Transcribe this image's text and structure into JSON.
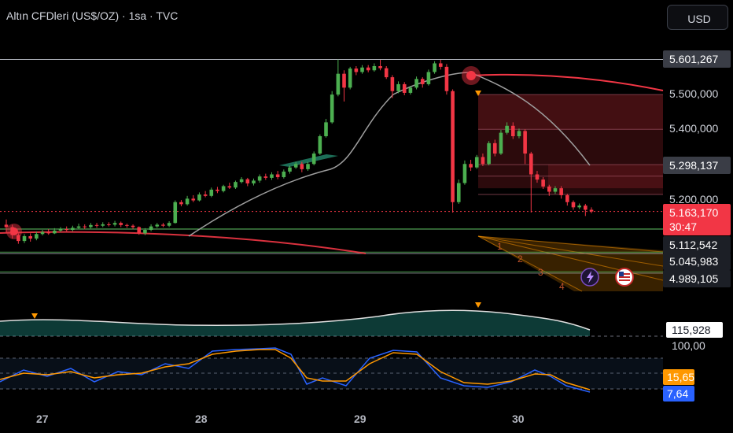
{
  "header": {
    "title": "Altın CFDleri (US$/OZ) · 1sa · TVC",
    "currency_button": "USD"
  },
  "colors": {
    "background": "#000000",
    "bull": "#26a69a",
    "bull_bright": "#4caf50",
    "bear": "#f23645",
    "ma_line": "#9e9e9e",
    "ma_red": "#f23645",
    "stoch_k": "#2962ff",
    "stoch_d": "#ff9800",
    "zone": "#f23645",
    "fan": "#ff9800",
    "osc_fill": "#26a69a"
  },
  "price_scale": {
    "levels": [
      "5.500,000",
      "5.400,000",
      "5.200,000"
    ],
    "tags": [
      {
        "text": "5.601,267",
        "style": "gray"
      },
      {
        "text": "5.298,137",
        "style": "gray"
      },
      {
        "text": "5.112,542",
        "style": "dark"
      },
      {
        "text": "5.045,983",
        "style": "dark"
      },
      {
        "text": "4.989,105",
        "style": "dark"
      }
    ],
    "current_price": "5.163,170",
    "countdown": "30:47"
  },
  "oscillator": {
    "value": "115,928",
    "level": "100,00"
  },
  "stochastic": {
    "d_value": "15,65",
    "k_value": "7,64"
  },
  "fan_labels": [
    "1",
    "2",
    "3",
    "4"
  ],
  "x_axis": [
    "27",
    "28",
    "29",
    "30"
  ],
  "icons": [
    "lightning-icon",
    "us-flag-icon"
  ],
  "chart_data": {
    "type": "candlestick",
    "title": "Altın CFDleri (US$/OZ) · 1sa · TVC",
    "x_ticks": [
      "27",
      "28",
      "29",
      "30"
    ],
    "ylim": [
      4960,
      5640
    ],
    "lines": [
      5601.267,
      5298.137,
      5112.542,
      5045.983,
      4989.105
    ],
    "last": 5163.17,
    "candles": [
      [
        5125,
        5118,
        5140,
        5102
      ],
      [
        5118,
        5095,
        5125,
        5085
      ],
      [
        5095,
        5078,
        5100,
        5070
      ],
      [
        5078,
        5092,
        5098,
        5072
      ],
      [
        5092,
        5085,
        5100,
        5076
      ],
      [
        5085,
        5098,
        5105,
        5080
      ],
      [
        5098,
        5104,
        5110,
        5094
      ],
      [
        5104,
        5100,
        5112,
        5096
      ],
      [
        5100,
        5108,
        5115,
        5098
      ],
      [
        5108,
        5112,
        5118,
        5104
      ],
      [
        5112,
        5110,
        5120,
        5106
      ],
      [
        5110,
        5116,
        5122,
        5106
      ],
      [
        5116,
        5120,
        5128,
        5112
      ],
      [
        5120,
        5118,
        5126,
        5112
      ],
      [
        5118,
        5124,
        5130,
        5114
      ],
      [
        5124,
        5122,
        5130,
        5116
      ],
      [
        5122,
        5126,
        5132,
        5118
      ],
      [
        5126,
        5125,
        5132,
        5120
      ],
      [
        5125,
        5130,
        5136,
        5120
      ],
      [
        5130,
        5124,
        5134,
        5118
      ],
      [
        5124,
        5122,
        5128,
        5116
      ],
      [
        5122,
        5118,
        5126,
        5112
      ],
      [
        5118,
        5100,
        5120,
        5096
      ],
      [
        5100,
        5110,
        5115,
        5095
      ],
      [
        5110,
        5120,
        5126,
        5106
      ],
      [
        5120,
        5125,
        5130,
        5116
      ],
      [
        5125,
        5122,
        5130,
        5118
      ],
      [
        5122,
        5130,
        5135,
        5118
      ],
      [
        5130,
        5190,
        5195,
        5128
      ],
      [
        5190,
        5184,
        5196,
        5178
      ],
      [
        5184,
        5200,
        5208,
        5180
      ],
      [
        5200,
        5195,
        5210,
        5190
      ],
      [
        5195,
        5212,
        5218,
        5192
      ],
      [
        5212,
        5208,
        5222,
        5204
      ],
      [
        5208,
        5226,
        5232,
        5204
      ],
      [
        5226,
        5222,
        5234,
        5216
      ],
      [
        5222,
        5236,
        5240,
        5218
      ],
      [
        5236,
        5232,
        5246,
        5228
      ],
      [
        5232,
        5248,
        5252,
        5228
      ],
      [
        5248,
        5256,
        5262,
        5244
      ],
      [
        5256,
        5244,
        5260,
        5236
      ],
      [
        5244,
        5252,
        5258,
        5238
      ],
      [
        5252,
        5264,
        5270,
        5246
      ],
      [
        5264,
        5260,
        5272,
        5254
      ],
      [
        5260,
        5270,
        5276,
        5254
      ],
      [
        5270,
        5262,
        5280,
        5256
      ],
      [
        5262,
        5278,
        5284,
        5258
      ],
      [
        5278,
        5290,
        5295,
        5272
      ],
      [
        5290,
        5300,
        5306,
        5286
      ],
      [
        5300,
        5285,
        5306,
        5276
      ],
      [
        5285,
        5300,
        5306,
        5280
      ],
      [
        5300,
        5330,
        5336,
        5296
      ],
      [
        5330,
        5380,
        5385,
        5326
      ],
      [
        5380,
        5420,
        5430,
        5376
      ],
      [
        5420,
        5500,
        5510,
        5416
      ],
      [
        5500,
        5560,
        5601,
        5495
      ],
      [
        5560,
        5520,
        5570,
        5480
      ],
      [
        5520,
        5575,
        5580,
        5515
      ],
      [
        5575,
        5565,
        5582,
        5556
      ],
      [
        5565,
        5578,
        5585,
        5560
      ],
      [
        5578,
        5570,
        5585,
        5564
      ],
      [
        5570,
        5582,
        5590,
        5566
      ],
      [
        5582,
        5576,
        5600,
        5570
      ],
      [
        5576,
        5550,
        5582,
        5545
      ],
      [
        5550,
        5510,
        5556,
        5490
      ],
      [
        5510,
        5530,
        5538,
        5504
      ],
      [
        5530,
        5505,
        5536,
        5498
      ],
      [
        5505,
        5520,
        5525,
        5500
      ],
      [
        5520,
        5545,
        5552,
        5515
      ],
      [
        5545,
        5530,
        5550,
        5520
      ],
      [
        5530,
        5565,
        5572,
        5526
      ],
      [
        5565,
        5590,
        5596,
        5560
      ],
      [
        5590,
        5580,
        5600,
        5572
      ],
      [
        5580,
        5510,
        5588,
        5500
      ],
      [
        5510,
        5190,
        5515,
        5160
      ],
      [
        5190,
        5245,
        5255,
        5185
      ],
      [
        5245,
        5300,
        5310,
        5240
      ],
      [
        5300,
        5290,
        5312,
        5280
      ],
      [
        5290,
        5320,
        5326,
        5286
      ],
      [
        5320,
        5300,
        5330,
        5294
      ],
      [
        5300,
        5360,
        5366,
        5296
      ],
      [
        5360,
        5330,
        5370,
        5322
      ],
      [
        5330,
        5390,
        5398,
        5326
      ],
      [
        5390,
        5410,
        5420,
        5385
      ],
      [
        5410,
        5380,
        5420,
        5372
      ],
      [
        5380,
        5395,
        5402,
        5374
      ],
      [
        5395,
        5330,
        5400,
        5300
      ],
      [
        5330,
        5270,
        5335,
        5160
      ],
      [
        5270,
        5255,
        5280,
        5246
      ],
      [
        5255,
        5235,
        5262,
        5228
      ],
      [
        5235,
        5220,
        5240,
        5208
      ],
      [
        5220,
        5230,
        5236,
        5214
      ],
      [
        5230,
        5210,
        5236,
        5200
      ],
      [
        5210,
        5190,
        5214,
        5180
      ],
      [
        5190,
        5175,
        5195,
        5168
      ],
      [
        5175,
        5180,
        5186,
        5170
      ],
      [
        5180,
        5168,
        5185,
        5150
      ],
      [
        5168,
        5163,
        5175,
        5158
      ]
    ]
  }
}
